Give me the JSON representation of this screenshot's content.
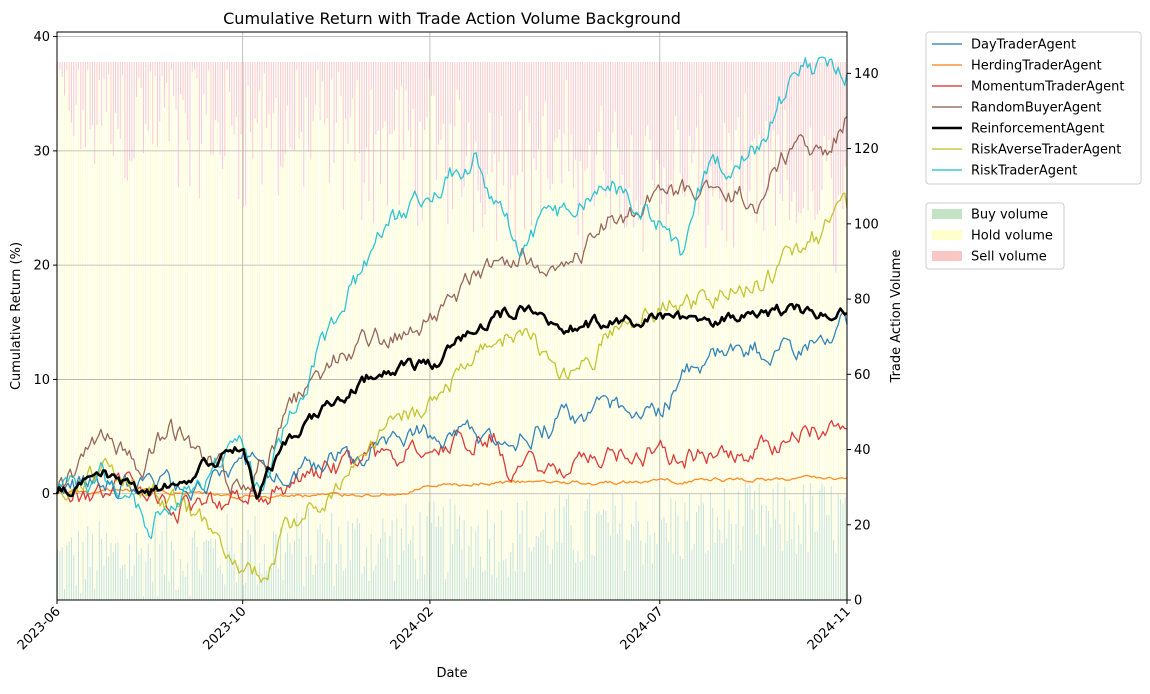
{
  "chart_data": {
    "type": "line",
    "title": "Cumulative Return with Trade Action Volume Background",
    "xlabel": "Date",
    "ylabel_left": "Cumulative Return (%)",
    "ylabel_right": "Trade Action Volume",
    "x_ticks": [
      "2023-06",
      "2023-10",
      "2024-02",
      "2024-07",
      "2024-11"
    ],
    "x_range": [
      "2023-06-01",
      "2024-11-01"
    ],
    "y_left_range": [
      -9.3,
      40.4
    ],
    "y_left_ticks": [
      0,
      10,
      20,
      30,
      40
    ],
    "y_right_range": [
      0,
      151
    ],
    "y_right_ticks": [
      0,
      20,
      40,
      60,
      80,
      100,
      120,
      140
    ],
    "grid": true,
    "legend_placement": "outside-right",
    "series": [
      {
        "name": "DayTraderAgent",
        "color": "#1f77b4",
        "x": [
          "2023-06-01",
          "2023-07-01",
          "2023-08-01",
          "2023-09-01",
          "2023-10-01",
          "2023-10-15",
          "2023-11-01",
          "2023-12-01",
          "2024-01-01",
          "2024-02-01",
          "2024-03-01",
          "2024-04-01",
          "2024-05-01",
          "2024-06-01",
          "2024-07-01",
          "2024-07-20",
          "2024-08-01",
          "2024-09-01",
          "2024-10-01",
          "2024-11-01"
        ],
        "values": [
          0,
          1.0,
          0.5,
          1.0,
          3.2,
          1.5,
          2.5,
          3.0,
          4.5,
          5.0,
          5.2,
          5.0,
          6.5,
          7.5,
          7.5,
          10.5,
          11.5,
          12.5,
          13.0,
          14.8
        ]
      },
      {
        "name": "HerdingTraderAgent",
        "color": "#ff7f0e",
        "x": [
          "2023-06-01",
          "2023-08-01",
          "2023-10-01",
          "2023-12-01",
          "2024-01-15",
          "2024-02-01",
          "2024-04-01",
          "2024-06-01",
          "2024-08-01",
          "2024-10-01",
          "2024-11-01"
        ],
        "values": [
          0,
          0.2,
          -0.3,
          -0.1,
          0.0,
          0.6,
          1.0,
          1.0,
          1.2,
          1.3,
          1.4
        ]
      },
      {
        "name": "MomentumTraderAgent",
        "color": "#d62728",
        "x": [
          "2023-06-01",
          "2023-07-15",
          "2023-08-15",
          "2023-10-01",
          "2023-11-15",
          "2024-01-01",
          "2024-02-15",
          "2024-03-15",
          "2024-03-25",
          "2024-05-01",
          "2024-06-15",
          "2024-07-15",
          "2024-08-15",
          "2024-10-01",
          "2024-11-01"
        ],
        "values": [
          0,
          0.5,
          -1.0,
          -0.5,
          1.5,
          3.0,
          4.5,
          5.5,
          2.0,
          2.5,
          4.0,
          3.0,
          3.0,
          5.0,
          5.7
        ]
      },
      {
        "name": "RandomBuyerAgent",
        "color": "#8c564b",
        "x": [
          "2023-06-01",
          "2023-07-01",
          "2023-07-25",
          "2023-08-15",
          "2023-09-10",
          "2023-10-01",
          "2023-11-01",
          "2023-12-01",
          "2024-01-01",
          "2024-02-01",
          "2024-03-01",
          "2024-04-01",
          "2024-05-01",
          "2024-06-01",
          "2024-07-01",
          "2024-08-01",
          "2024-09-01",
          "2024-10-01",
          "2024-10-20",
          "2024-11-01"
        ],
        "values": [
          0,
          5.0,
          2.0,
          5.5,
          3.0,
          0.0,
          7.0,
          12.0,
          13.5,
          15.0,
          18.5,
          21.0,
          20.0,
          24.0,
          26.0,
          27.0,
          25.5,
          31.0,
          29.5,
          33.0
        ]
      },
      {
        "name": "ReinforcementAgent",
        "color": "#000000",
        "bold": true,
        "x": [
          "2023-06-01",
          "2023-07-01",
          "2023-08-01",
          "2023-09-01",
          "2023-10-01",
          "2023-10-10",
          "2023-11-01",
          "2023-12-01",
          "2024-01-01",
          "2024-02-01",
          "2024-03-01",
          "2024-04-01",
          "2024-05-01",
          "2024-06-01",
          "2024-07-01",
          "2024-08-01",
          "2024-09-01",
          "2024-10-01",
          "2024-11-01"
        ],
        "values": [
          0,
          2.0,
          0.0,
          2.0,
          4.0,
          0.0,
          5.0,
          8.0,
          11.0,
          11.0,
          14.5,
          16.5,
          14.5,
          15.0,
          15.5,
          14.5,
          16.0,
          16.0,
          15.8
        ]
      },
      {
        "name": "RiskAverseTraderAgent",
        "color": "#bcbd22",
        "x": [
          "2023-06-01",
          "2023-07-01",
          "2023-08-01",
          "2023-09-01",
          "2023-09-25",
          "2023-10-15",
          "2023-11-01",
          "2023-12-01",
          "2024-01-01",
          "2024-02-01",
          "2024-03-01",
          "2024-04-01",
          "2024-05-01",
          "2024-06-01",
          "2024-07-01",
          "2024-08-01",
          "2024-09-01",
          "2024-10-01",
          "2024-11-01"
        ],
        "values": [
          0,
          2.5,
          0.5,
          -2.0,
          -5.5,
          -6.5,
          -3.0,
          1.0,
          5.0,
          8.0,
          12.0,
          15.0,
          10.0,
          14.0,
          16.5,
          17.0,
          18.0,
          21.0,
          25.0
        ]
      },
      {
        "name": "RiskTraderAgent",
        "color": "#17becf",
        "x": [
          "2023-06-01",
          "2023-07-01",
          "2023-08-01",
          "2023-09-01",
          "2023-10-01",
          "2023-10-15",
          "2023-11-01",
          "2023-12-01",
          "2024-01-01",
          "2024-02-01",
          "2024-03-01",
          "2024-04-01",
          "2024-05-01",
          "2024-06-01",
          "2024-07-01",
          "2024-07-15",
          "2024-08-01",
          "2024-09-01",
          "2024-10-01",
          "2024-11-01"
        ],
        "values": [
          0,
          1.5,
          -2.5,
          1.0,
          4.0,
          -0.5,
          7.0,
          15.0,
          23.0,
          27.0,
          29.5,
          21.5,
          25.0,
          27.0,
          24.0,
          21.0,
          28.0,
          30.0,
          37.5,
          36.8
        ]
      }
    ],
    "background_bars": {
      "count": 340,
      "colors": {
        "buy": "#9ccf9c",
        "hold": "#ffffa8",
        "sell": "#f8a0a0"
      },
      "legend": [
        "Buy volume",
        "Hold volume",
        "Sell volume"
      ],
      "total": 143,
      "buy_avg_start": 10,
      "buy_avg_end": 22,
      "hold_avg_start": 120,
      "hold_avg_end": 85
    }
  }
}
